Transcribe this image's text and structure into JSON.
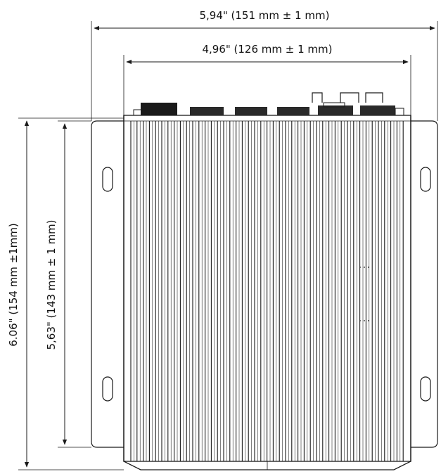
{
  "dimensions": {
    "overall_width": "5,94\" (151 mm ± 1 mm)",
    "body_width": "4,96\" (126 mm ± 1 mm)",
    "overall_height": "6.06\" (154 mm ±1mm)",
    "body_height": "5,63\" (143 mm ± 1 mm)"
  },
  "colors": {
    "line": "#1a1a1a",
    "fill": "#ffffff"
  }
}
